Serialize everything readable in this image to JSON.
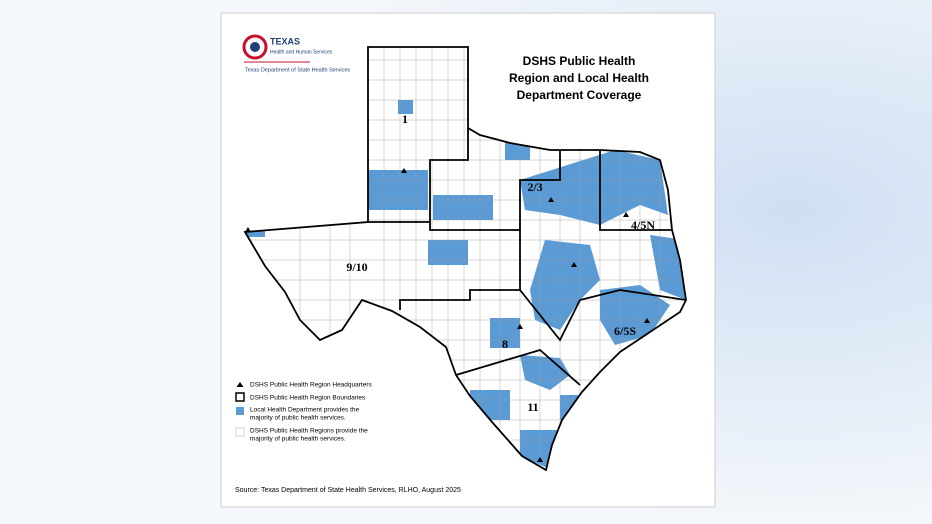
{
  "logo": {
    "agency": "TEXAS",
    "subtitle": "Health and Human Services",
    "department": "Texas Department of State Health Services"
  },
  "title": [
    "DSHS Public Health",
    "Region and Local Health",
    "Department Coverage"
  ],
  "regions": [
    "1",
    "2/3",
    "4/5N",
    "9/10",
    "6/5S",
    "8",
    "11"
  ],
  "legend": [
    {
      "label": "DSHS Public Health Region Headquarters"
    },
    {
      "label": "DSHS Public Health Region Boundaries"
    },
    {
      "label": [
        "Local Health Department provides the",
        "majority of public health services."
      ]
    },
    {
      "label": [
        "DSHS Public Health Regions provide the",
        "majority of public health services."
      ]
    }
  ],
  "source": "Source: Texas Department of State Health Services, RLHO, August 2025"
}
